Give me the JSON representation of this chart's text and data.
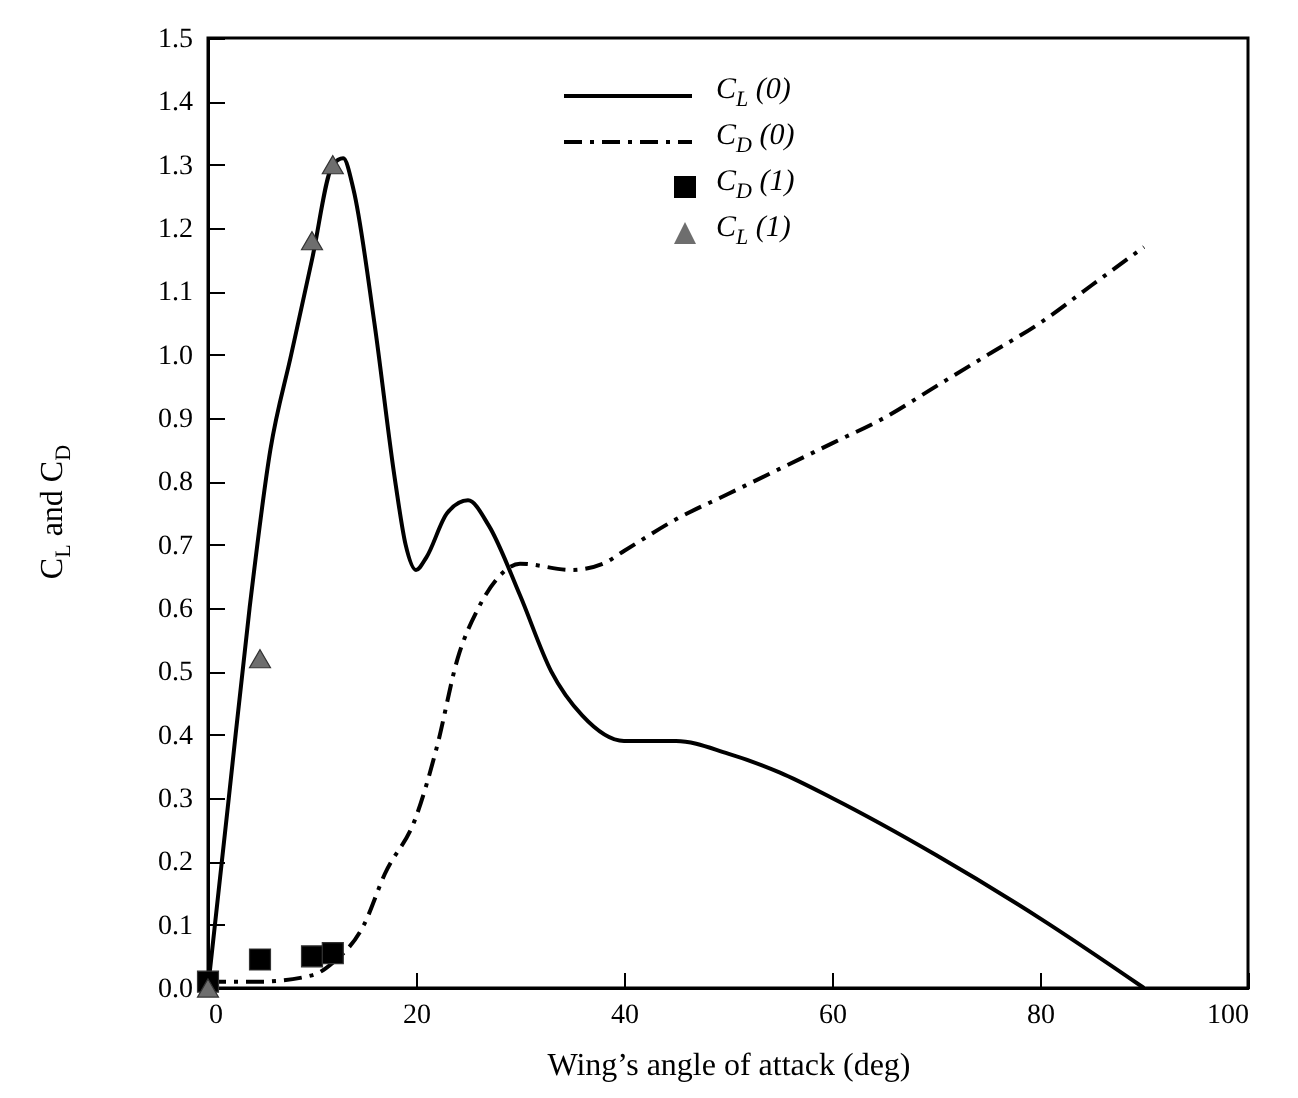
{
  "chart_data": {
    "type": "line",
    "xlabel": "Wing’s angle of attack (deg)",
    "ylabel": "C$_{L}$ and C$_{D}$",
    "xlim": [
      0,
      100
    ],
    "xticks": [
      0,
      20,
      40,
      60,
      80,
      100
    ],
    "ylim": [
      0,
      1.5
    ],
    "yticks": [
      {
        "value": 0,
        "label": "0.0"
      },
      {
        "value": 0.1,
        "label": "0.1"
      },
      {
        "value": 0.2,
        "label": "0.2"
      },
      {
        "value": 0.3,
        "label": "0.3"
      },
      {
        "value": 0.4,
        "label": "0.4"
      },
      {
        "value": 0.5,
        "label": "0.5"
      },
      {
        "value": 0.6,
        "label": "0.6"
      },
      {
        "value": 0.7,
        "label": "0.7"
      },
      {
        "value": 0.8,
        "label": "0.8"
      },
      {
        "value": 0.9,
        "label": "0.9"
      },
      {
        "value": 1,
        "label": "1.0"
      },
      {
        "value": 1.1,
        "label": "1.1"
      },
      {
        "value": 1.2,
        "label": "1.2"
      },
      {
        "value": 1.3,
        "label": "1.3"
      },
      {
        "value": 1.4,
        "label": "1.4"
      },
      {
        "value": 1.5,
        "label": "1.5"
      }
    ],
    "grid": false,
    "legend": "top",
    "series": [
      {
        "name": "C$_{L}$ (0)",
        "type": "line",
        "line_style": "solid",
        "color": "#000000",
        "x": [
          0,
          2,
          4,
          6,
          8,
          10,
          12,
          13,
          14,
          16,
          18,
          19,
          20,
          21,
          23,
          25,
          27,
          30,
          33,
          36,
          40,
          45,
          50,
          55,
          60,
          70,
          80,
          90
        ],
        "values": [
          0,
          0.3,
          0.6,
          0.85,
          1.0,
          1.15,
          1.3,
          1.31,
          1.26,
          1.05,
          0.8,
          0.7,
          0.66,
          0.68,
          0.75,
          0.77,
          0.73,
          0.62,
          0.5,
          0.43,
          0.39,
          0.39,
          0.37,
          0.34,
          0.3,
          0.21,
          0.11,
          0
        ]
      },
      {
        "name": "C$_{D}$ (0)",
        "type": "line",
        "line_style": "dashed",
        "color": "#000000",
        "x": [
          0,
          5,
          10,
          12,
          15,
          17,
          20,
          22,
          24,
          26,
          28,
          30,
          35,
          38,
          40,
          45,
          50,
          55,
          60,
          65,
          70,
          75,
          80,
          85,
          90
        ],
        "values": [
          0.01,
          0.01,
          0.02,
          0.04,
          0.1,
          0.18,
          0.27,
          0.38,
          0.52,
          0.6,
          0.65,
          0.67,
          0.66,
          0.67,
          0.69,
          0.74,
          0.78,
          0.82,
          0.86,
          0.9,
          0.95,
          1.0,
          1.05,
          1.11,
          1.17
        ]
      },
      {
        "name": "C$_{D}$ (1)",
        "type": "scatter",
        "marker": "square",
        "color": "#000000",
        "x": [
          0,
          5,
          10,
          12
        ],
        "values": [
          0.01,
          0.045,
          0.05,
          0.055
        ]
      },
      {
        "name": "C$_{L}$ (1)",
        "type": "scatter",
        "marker": "triangle",
        "color": "#6e6e6e",
        "x": [
          0,
          5,
          10,
          12
        ],
        "values": [
          0,
          0.52,
          1.18,
          1.3
        ]
      }
    ]
  }
}
